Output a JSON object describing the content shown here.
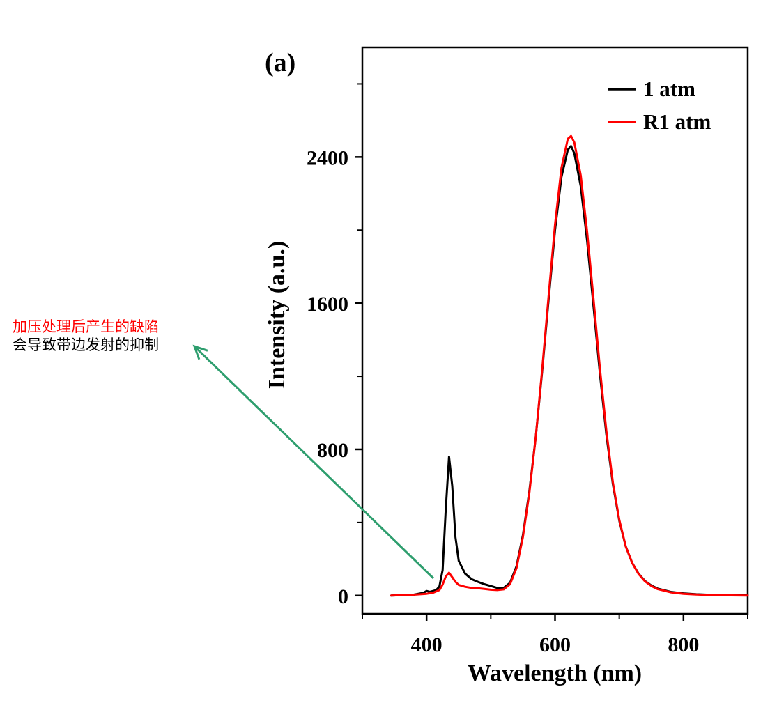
{
  "panel_label": "(a)",
  "annotation": {
    "line1": "加压处理后产生的缺陷",
    "line2": "会导致带边发射的抑制",
    "arrow_color": "#2e9e6e"
  },
  "chart_data": {
    "type": "line",
    "title": "",
    "xlabel": "Wavelength (nm)",
    "ylabel": "Intensity (a.u.)",
    "xlim": [
      300,
      900
    ],
    "ylim": [
      -100,
      3000
    ],
    "xticks": [
      400,
      600,
      800
    ],
    "yticks": [
      0,
      800,
      1600,
      2400
    ],
    "grid": false,
    "legend_position": "top-right",
    "series": [
      {
        "name": "1 atm",
        "color": "#000000",
        "points": [
          [
            345,
            0
          ],
          [
            380,
            5
          ],
          [
            395,
            15
          ],
          [
            400,
            25
          ],
          [
            405,
            20
          ],
          [
            415,
            30
          ],
          [
            420,
            50
          ],
          [
            425,
            140
          ],
          [
            430,
            480
          ],
          [
            435,
            760
          ],
          [
            440,
            600
          ],
          [
            445,
            320
          ],
          [
            450,
            190
          ],
          [
            460,
            120
          ],
          [
            470,
            90
          ],
          [
            480,
            75
          ],
          [
            490,
            62
          ],
          [
            500,
            52
          ],
          [
            510,
            42
          ],
          [
            520,
            42
          ],
          [
            530,
            70
          ],
          [
            540,
            160
          ],
          [
            550,
            330
          ],
          [
            560,
            570
          ],
          [
            570,
            870
          ],
          [
            580,
            1230
          ],
          [
            590,
            1620
          ],
          [
            600,
            2000
          ],
          [
            610,
            2290
          ],
          [
            620,
            2440
          ],
          [
            625,
            2460
          ],
          [
            630,
            2420
          ],
          [
            640,
            2240
          ],
          [
            650,
            1940
          ],
          [
            660,
            1580
          ],
          [
            670,
            1210
          ],
          [
            680,
            880
          ],
          [
            690,
            610
          ],
          [
            700,
            410
          ],
          [
            710,
            270
          ],
          [
            720,
            180
          ],
          [
            730,
            120
          ],
          [
            740,
            80
          ],
          [
            750,
            55
          ],
          [
            760,
            38
          ],
          [
            780,
            20
          ],
          [
            800,
            12
          ],
          [
            820,
            7
          ],
          [
            850,
            3
          ],
          [
            900,
            1
          ]
        ]
      },
      {
        "name": "R1 atm",
        "color": "#ff0000",
        "points": [
          [
            345,
            0
          ],
          [
            380,
            5
          ],
          [
            400,
            10
          ],
          [
            410,
            15
          ],
          [
            420,
            30
          ],
          [
            425,
            60
          ],
          [
            430,
            105
          ],
          [
            435,
            125
          ],
          [
            440,
            100
          ],
          [
            445,
            75
          ],
          [
            450,
            58
          ],
          [
            460,
            48
          ],
          [
            470,
            42
          ],
          [
            480,
            40
          ],
          [
            490,
            36
          ],
          [
            500,
            32
          ],
          [
            510,
            30
          ],
          [
            520,
            34
          ],
          [
            530,
            62
          ],
          [
            540,
            150
          ],
          [
            550,
            320
          ],
          [
            560,
            560
          ],
          [
            570,
            870
          ],
          [
            580,
            1240
          ],
          [
            590,
            1640
          ],
          [
            600,
            2030
          ],
          [
            610,
            2340
          ],
          [
            620,
            2500
          ],
          [
            625,
            2515
          ],
          [
            630,
            2480
          ],
          [
            640,
            2300
          ],
          [
            650,
            1990
          ],
          [
            660,
            1620
          ],
          [
            670,
            1240
          ],
          [
            680,
            900
          ],
          [
            690,
            620
          ],
          [
            700,
            415
          ],
          [
            710,
            270
          ],
          [
            720,
            180
          ],
          [
            730,
            118
          ],
          [
            740,
            78
          ],
          [
            750,
            52
          ],
          [
            760,
            35
          ],
          [
            780,
            18
          ],
          [
            800,
            10
          ],
          [
            820,
            6
          ],
          [
            850,
            2
          ],
          [
            900,
            0
          ]
        ]
      }
    ]
  }
}
